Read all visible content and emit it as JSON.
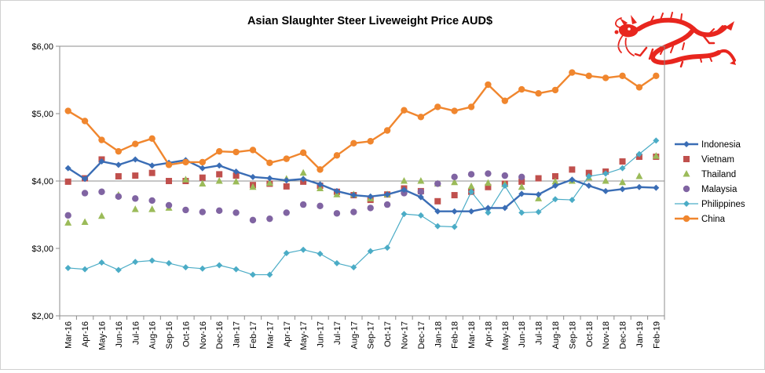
{
  "chart_data": {
    "type": "line",
    "title": "Asian Slaughter Steer Liveweight Price AUD$",
    "xlabel": "",
    "ylabel": "",
    "ylim": [
      2,
      6
    ],
    "yticks": [
      2,
      3,
      4,
      5,
      6
    ],
    "ytick_labels": [
      "$2,00",
      "$3,00",
      "$4,00",
      "$5,00",
      "$6,00"
    ],
    "grid": "horizontal major at $4,00 only",
    "legend_position": "right",
    "categories": [
      "Mar-16",
      "Apr-16",
      "May-16",
      "Jun-16",
      "Jul-16",
      "Aug-16",
      "Sep-16",
      "Oct-16",
      "Nov-16",
      "Dec-16",
      "Jan-17",
      "Feb-17",
      "Mar-17",
      "Apr-17",
      "May-17",
      "Jun-17",
      "Jul-17",
      "Aug-17",
      "Sep-17",
      "Oct-17",
      "Nov-17",
      "Dec-17",
      "Jan-18",
      "Feb-18",
      "Mar-18",
      "Apr-18",
      "May-18",
      "Jun-18",
      "Jul-18",
      "Aug-18",
      "Sep-18",
      "Oct-18",
      "Nov-18",
      "Dec-18",
      "Jan-19",
      "Feb-19"
    ],
    "series": [
      {
        "name": "Indonesia",
        "style": "line",
        "marker": "diamond",
        "color": "#3A6DB5",
        "values": [
          4.19,
          4.03,
          4.29,
          4.24,
          4.32,
          4.23,
          4.27,
          4.31,
          4.19,
          4.23,
          4.14,
          4.06,
          4.04,
          4.01,
          4.03,
          3.95,
          3.85,
          3.79,
          3.77,
          3.8,
          3.87,
          3.76,
          3.55,
          3.55,
          3.55,
          3.6,
          3.6,
          3.81,
          3.8,
          3.93,
          4.02,
          3.93,
          3.85,
          3.88,
          3.91,
          3.9
        ]
      },
      {
        "name": "Vietnam",
        "style": "marker",
        "marker": "square",
        "color": "#C0504D",
        "values": [
          3.99,
          4.04,
          4.32,
          4.07,
          4.08,
          4.12,
          4.0,
          4.0,
          4.05,
          4.1,
          4.08,
          3.94,
          3.96,
          3.92,
          3.99,
          3.93,
          3.84,
          3.79,
          3.72,
          3.8,
          3.89,
          3.85,
          3.7,
          3.79,
          3.84,
          3.91,
          3.96,
          3.99,
          4.04,
          4.07,
          4.17,
          4.12,
          4.14,
          4.29,
          4.36,
          4.36
        ]
      },
      {
        "name": "Thailand",
        "style": "marker",
        "marker": "triangle",
        "color": "#9BBB59",
        "values": [
          3.38,
          3.39,
          3.48,
          3.79,
          3.58,
          3.58,
          3.6,
          4.02,
          3.96,
          4.0,
          3.99,
          3.91,
          3.97,
          4.03,
          4.12,
          3.89,
          3.8,
          3.8,
          3.74,
          3.8,
          4.0,
          4.0,
          3.96,
          3.98,
          3.92,
          3.97,
          3.95,
          3.91,
          3.74,
          3.99,
          4.0,
          4.05,
          4.0,
          3.98,
          4.07,
          4.37
        ]
      },
      {
        "name": "Malaysia",
        "style": "marker",
        "marker": "circle",
        "color": "#8064A2",
        "values": [
          3.49,
          3.82,
          3.84,
          3.77,
          3.74,
          3.71,
          3.64,
          3.57,
          3.54,
          3.56,
          3.53,
          3.42,
          3.44,
          3.53,
          3.65,
          3.63,
          3.52,
          3.54,
          3.6,
          3.65,
          3.82,
          3.84,
          3.96,
          4.06,
          4.1,
          4.11,
          4.08,
          4.06,
          null,
          null,
          null,
          null,
          null,
          null,
          null,
          null
        ]
      },
      {
        "name": "Philippines",
        "style": "line",
        "marker": "diamond",
        "color": "#4BACC6",
        "values": [
          2.71,
          2.69,
          2.79,
          2.68,
          2.8,
          2.82,
          2.78,
          2.72,
          2.7,
          2.75,
          2.69,
          2.61,
          2.61,
          2.93,
          2.98,
          2.92,
          2.78,
          2.72,
          2.96,
          3.01,
          3.51,
          3.49,
          3.33,
          3.32,
          3.84,
          3.53,
          3.93,
          3.53,
          3.54,
          3.73,
          3.72,
          4.07,
          4.11,
          4.19,
          4.4,
          4.6
        ]
      },
      {
        "name": "China",
        "style": "line",
        "marker": "circle",
        "color": "#F0862E",
        "values": [
          5.04,
          4.89,
          4.61,
          4.44,
          4.55,
          4.63,
          4.24,
          4.28,
          4.28,
          4.44,
          4.43,
          4.46,
          4.27,
          4.33,
          4.42,
          4.17,
          4.38,
          4.56,
          4.59,
          4.75,
          5.05,
          4.95,
          5.1,
          5.04,
          5.1,
          5.43,
          5.19,
          5.36,
          5.3,
          5.35,
          5.61,
          5.56,
          5.53,
          5.56,
          5.39,
          5.56
        ]
      }
    ]
  },
  "decoration": {
    "icon": "dragon-icon",
    "color": "#E8261E"
  }
}
